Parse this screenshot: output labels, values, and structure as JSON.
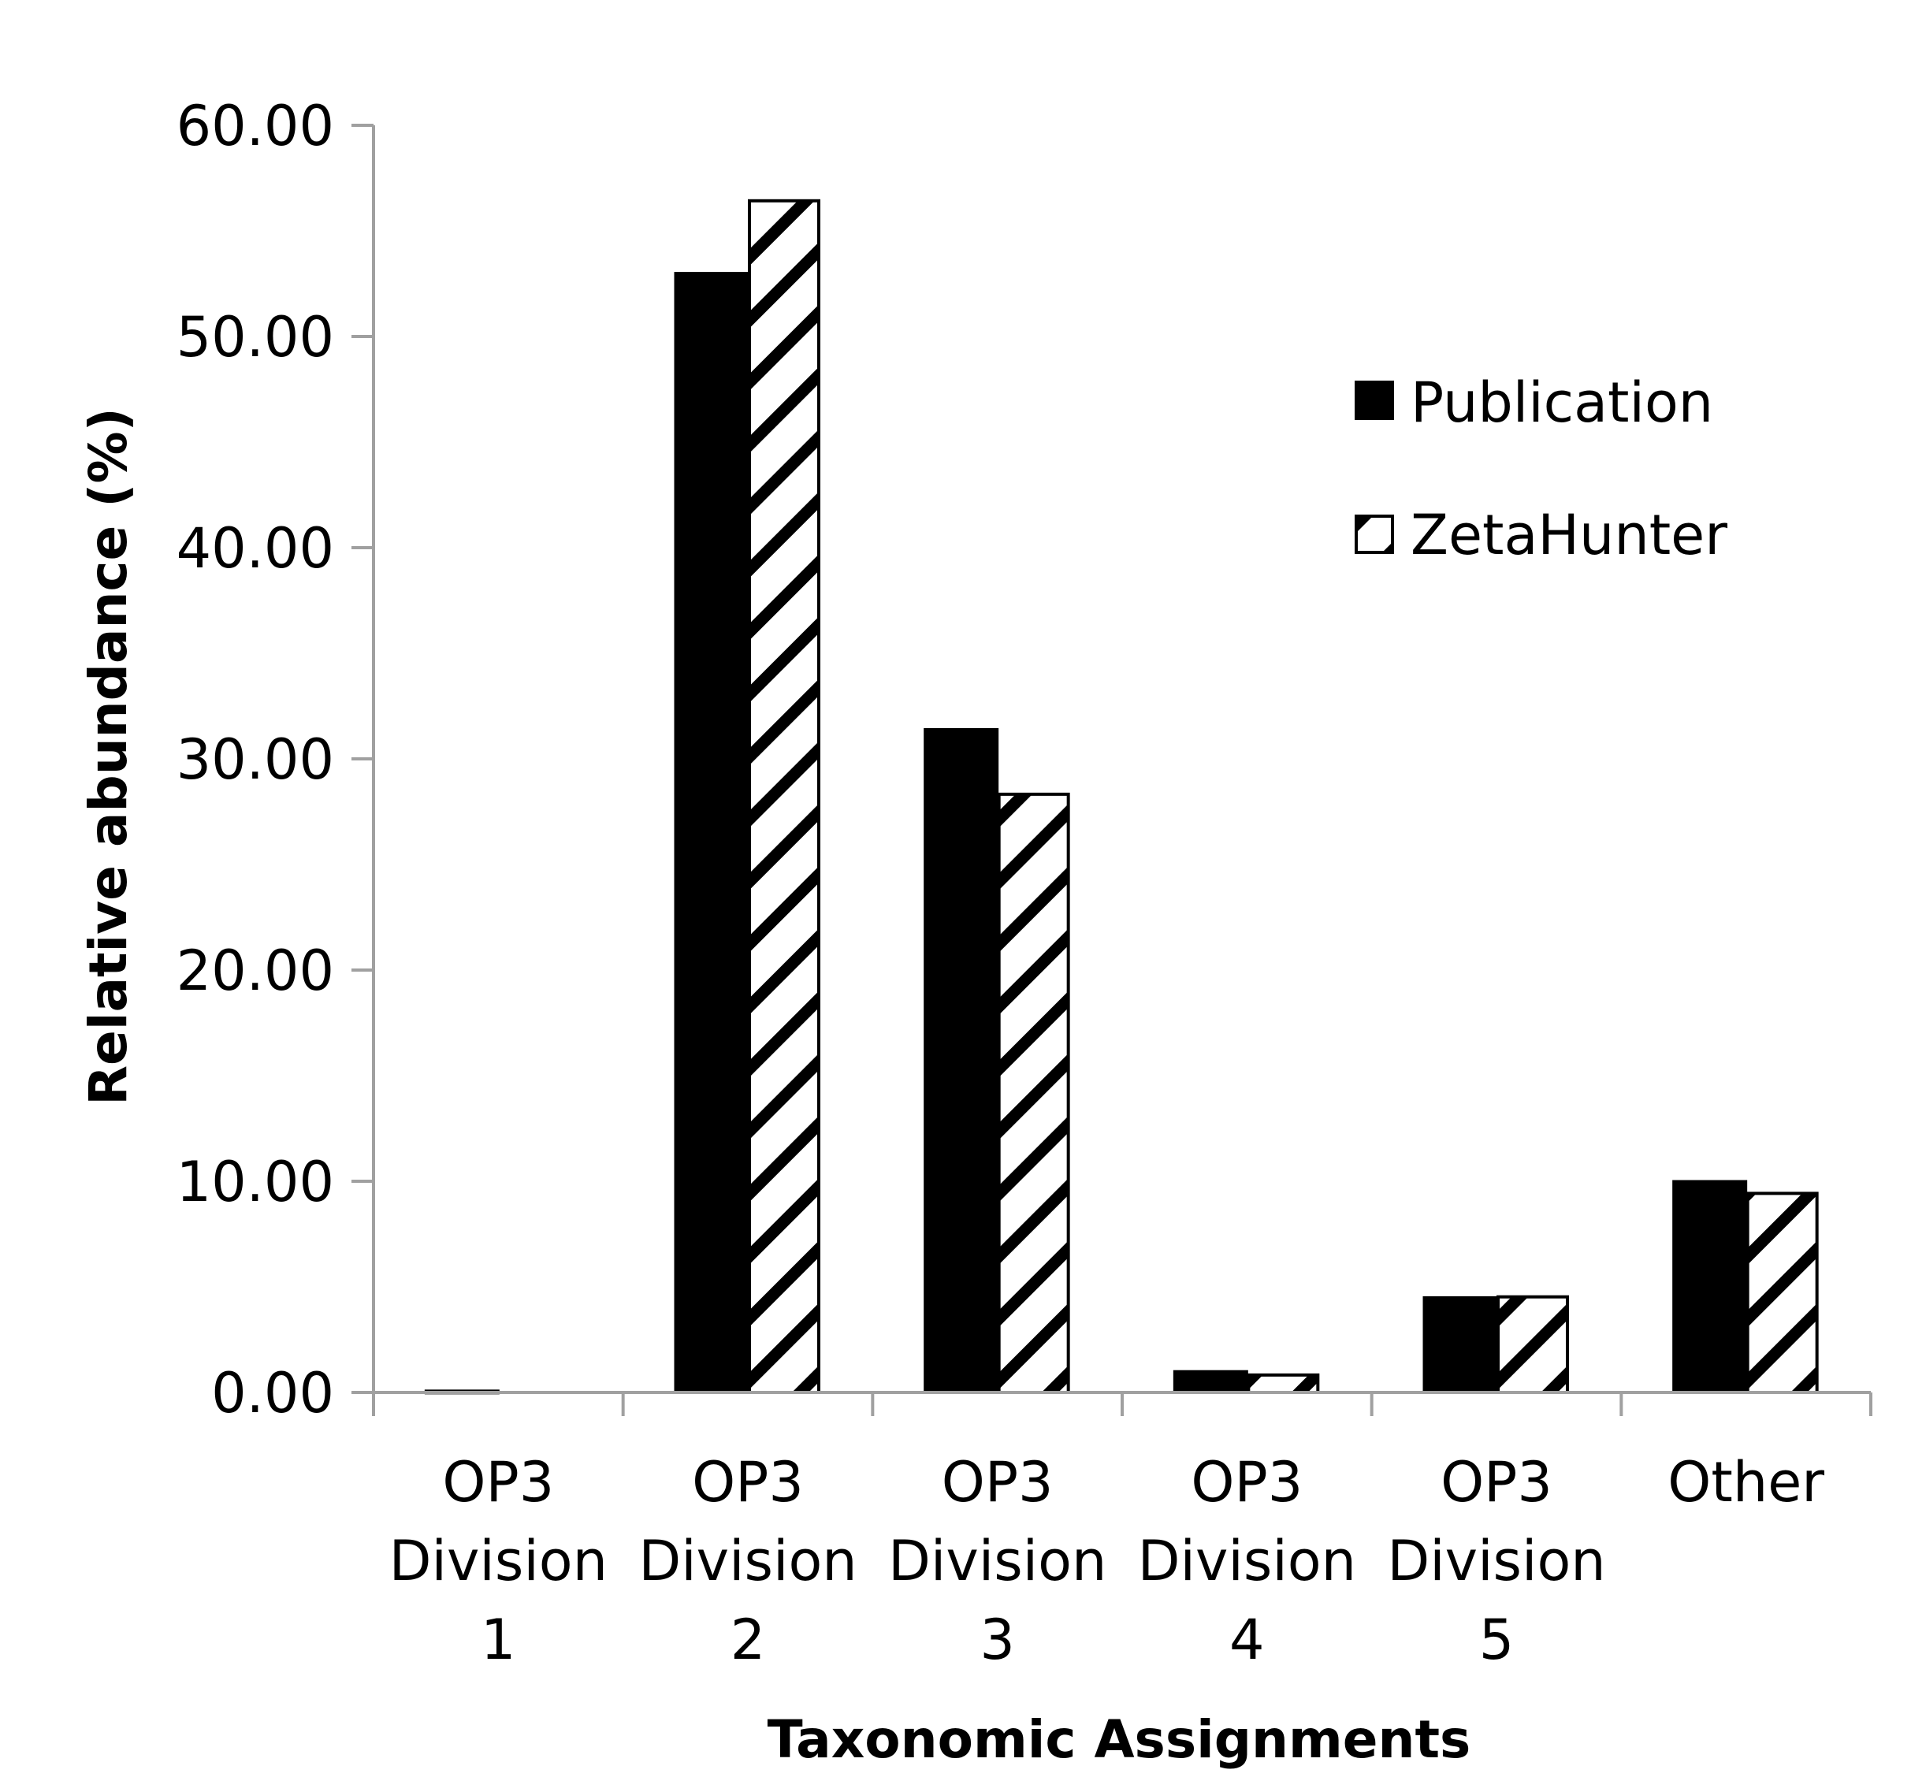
{
  "chart_data": {
    "type": "bar",
    "title": "",
    "xlabel": "Taxonomic Assignments",
    "ylabel": "Relative abundance (%)",
    "ylim": [
      0,
      60
    ],
    "yticks": [
      "0.00",
      "10.00",
      "20.00",
      "30.00",
      "40.00",
      "50.00",
      "60.00"
    ],
    "ytick_values": [
      0,
      10,
      20,
      30,
      40,
      50,
      60
    ],
    "categories": [
      [
        "OP3",
        "Division",
        "1"
      ],
      [
        "OP3",
        "Division",
        "2"
      ],
      [
        "OP3",
        "Division",
        "3"
      ],
      [
        "OP3",
        "Division",
        "4"
      ],
      [
        "OP3",
        "Division",
        "5"
      ],
      [
        "Other"
      ]
    ],
    "series": [
      {
        "name": "Publication",
        "pattern": "solid",
        "color": "#000000",
        "values": [
          0.08,
          53.0,
          31.4,
          1.0,
          4.5,
          10.0
        ]
      },
      {
        "name": "ZetaHunter",
        "pattern": "diagonal-hatch",
        "color": "#000000",
        "values": [
          0.0,
          56.5,
          28.4,
          0.9,
          4.6,
          9.5
        ]
      }
    ],
    "grid": false,
    "legend_position": "top-right",
    "axis_color": "#a0a0a0"
  }
}
